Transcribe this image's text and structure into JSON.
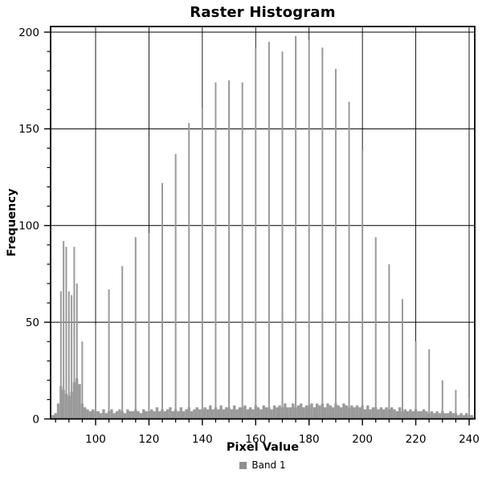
{
  "chart_data": {
    "type": "bar",
    "title": "Raster Histogram",
    "xlabel": "Pixel Value",
    "ylabel": "Frequency",
    "legend": [
      {
        "label": "Band 1",
        "color": "#8f8f8f"
      }
    ],
    "bar_color": "#9a9a9a",
    "grid": true,
    "xlim": [
      83,
      242.5
    ],
    "ylim": [
      0,
      202
    ],
    "xticks_major": [
      100,
      120,
      140,
      160,
      180,
      200,
      220,
      240
    ],
    "xticks_minor_step": 5,
    "yticks_major": [
      0,
      50,
      100,
      150,
      200
    ],
    "yticks_minor_step": 10,
    "baseline": {
      "start_pv": 84,
      "heights": [
        2,
        3,
        8,
        17,
        15,
        13,
        12,
        14,
        19,
        21,
        18,
        8,
        6,
        5,
        4,
        5,
        4,
        4,
        3,
        5,
        3,
        4,
        5,
        3,
        4,
        5,
        4,
        3,
        5,
        4,
        4,
        5,
        4,
        3,
        5,
        4,
        4,
        5,
        4,
        6,
        4,
        5,
        4,
        5,
        6,
        4,
        5,
        4,
        6,
        4,
        5,
        6,
        4,
        5,
        6,
        5,
        5,
        6,
        5,
        7,
        5,
        6,
        5,
        7,
        5,
        6,
        6,
        5,
        7,
        5,
        6,
        6,
        7,
        5,
        6,
        5,
        7,
        6,
        5,
        7,
        6,
        6,
        5,
        7,
        6,
        7,
        6,
        8,
        6,
        6,
        8,
        6,
        7,
        8,
        6,
        7,
        7,
        8,
        6,
        8,
        7,
        8,
        6,
        8,
        7,
        6,
        8,
        7,
        6,
        8,
        7,
        6,
        7,
        6,
        7,
        6,
        7,
        5,
        7,
        5,
        6,
        6,
        5,
        6,
        5,
        6,
        5,
        6,
        5,
        4,
        6,
        4,
        5,
        4,
        5,
        4,
        5,
        4,
        4,
        5,
        4,
        3,
        4,
        3,
        4,
        3,
        4,
        3,
        3,
        4,
        3,
        3,
        2,
        3,
        2,
        3,
        2,
        2,
        1
      ]
    },
    "spikes": [
      {
        "pv": 87,
        "freq": 66
      },
      {
        "pv": 88,
        "freq": 92
      },
      {
        "pv": 89,
        "freq": 89
      },
      {
        "pv": 90,
        "freq": 66
      },
      {
        "pv": 91,
        "freq": 64
      },
      {
        "pv": 92,
        "freq": 89
      },
      {
        "pv": 93,
        "freq": 70
      },
      {
        "pv": 95,
        "freq": 40
      },
      {
        "pv": 100,
        "freq": 49
      },
      {
        "pv": 105,
        "freq": 67
      },
      {
        "pv": 110,
        "freq": 79
      },
      {
        "pv": 115,
        "freq": 94
      },
      {
        "pv": 120,
        "freq": 96
      },
      {
        "pv": 125,
        "freq": 122
      },
      {
        "pv": 130,
        "freq": 137
      },
      {
        "pv": 135,
        "freq": 153
      },
      {
        "pv": 140,
        "freq": 161
      },
      {
        "pv": 145,
        "freq": 174
      },
      {
        "pv": 150,
        "freq": 175
      },
      {
        "pv": 155,
        "freq": 174
      },
      {
        "pv": 160,
        "freq": 192
      },
      {
        "pv": 165,
        "freq": 195
      },
      {
        "pv": 170,
        "freq": 190
      },
      {
        "pv": 175,
        "freq": 198
      },
      {
        "pv": 180,
        "freq": 196
      },
      {
        "pv": 185,
        "freq": 192
      },
      {
        "pv": 190,
        "freq": 181
      },
      {
        "pv": 195,
        "freq": 164
      },
      {
        "pv": 200,
        "freq": 139
      },
      {
        "pv": 205,
        "freq": 94
      },
      {
        "pv": 210,
        "freq": 80
      },
      {
        "pv": 215,
        "freq": 62
      },
      {
        "pv": 220,
        "freq": 40
      },
      {
        "pv": 225,
        "freq": 36
      },
      {
        "pv": 230,
        "freq": 20
      },
      {
        "pv": 235,
        "freq": 15
      },
      {
        "pv": 240,
        "freq": 11
      }
    ]
  }
}
